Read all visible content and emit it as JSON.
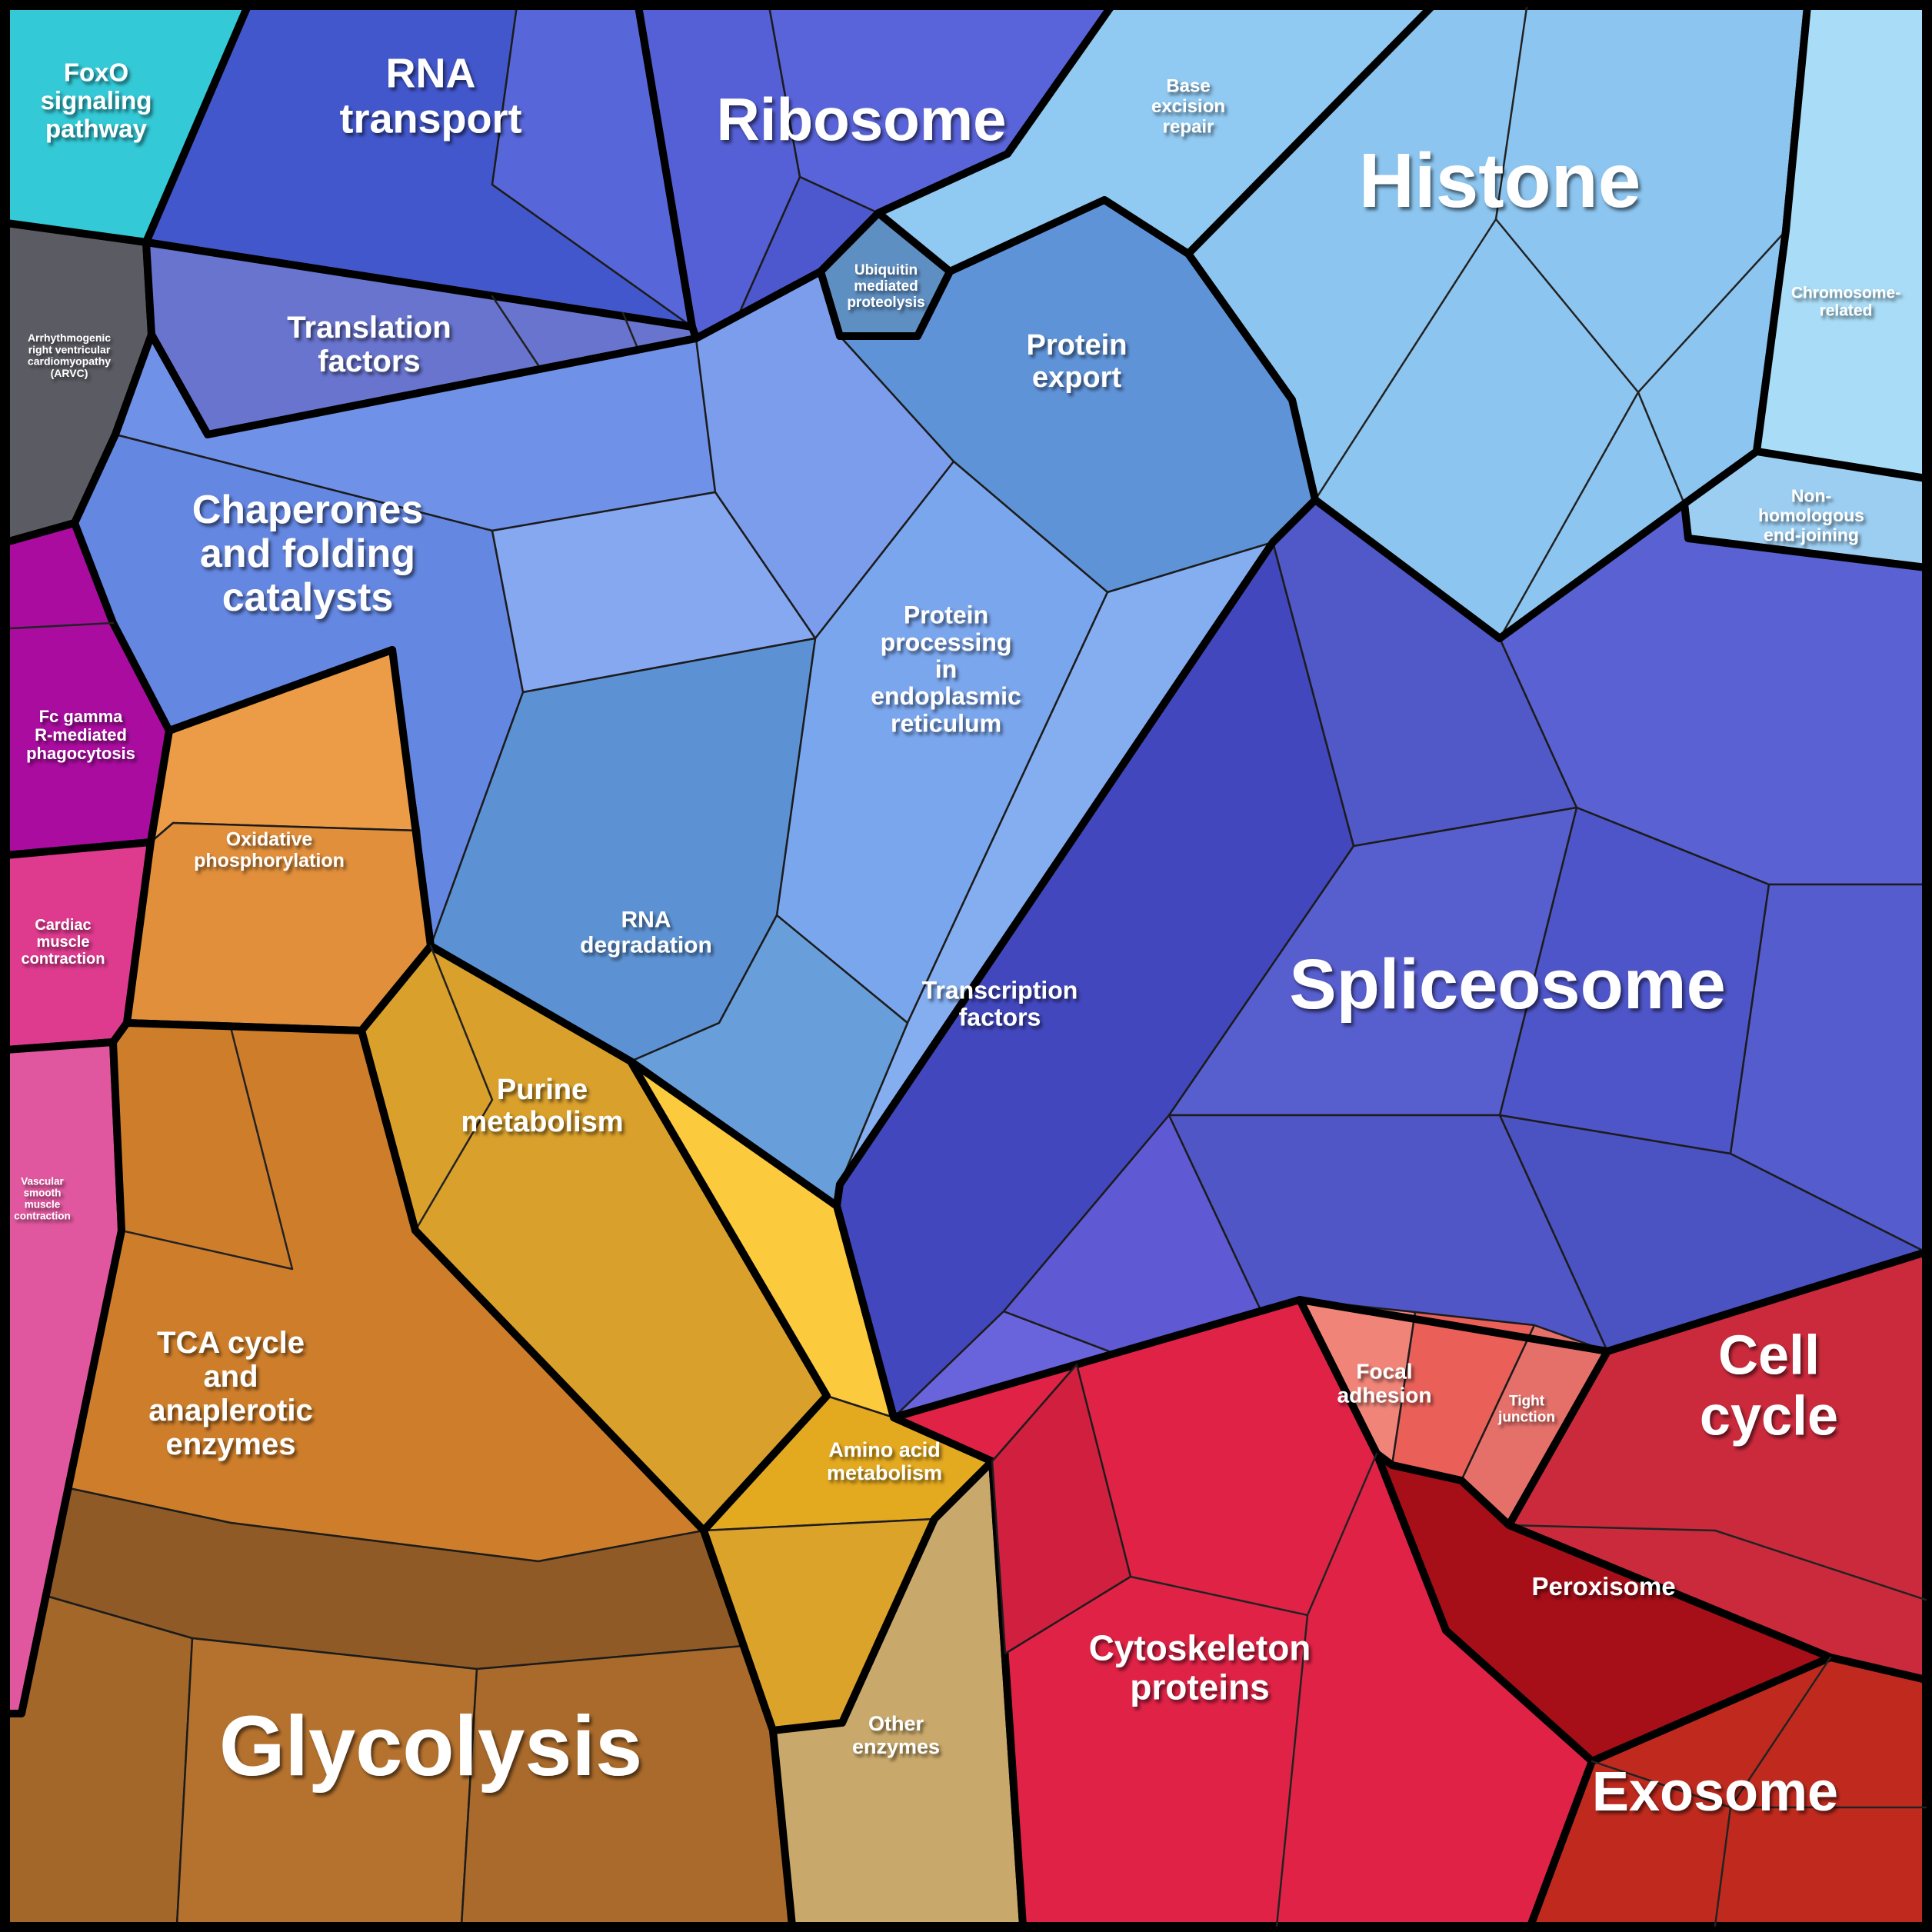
{
  "figure": {
    "kind": "proteomap-voronoi-treemap",
    "background": "#000000",
    "note": "Polygonal treemap of functional categories; cell area encodes relative share (values below are visual estimates read from cell areas)."
  },
  "chart_data": {
    "type": "treemap",
    "variant": "voronoi",
    "legend": "none",
    "regions": {
      "foxo": {
        "label": "FoxO signaling pathway",
        "lines": [
          "FoxO",
          "signaling",
          "pathway"
        ],
        "color": "#33C9D6",
        "approx_area_pct": 1.4
      },
      "arvc": {
        "label": "Arrhythmogenic right ventricular cardiomyopathy (ARVC)",
        "lines": [
          "Arrhythmogenic",
          "right ventricular",
          "cardiomyopathy",
          "(ARVC)"
        ],
        "color": "#5B5B63",
        "approx_area_pct": 1.1
      },
      "fc_gamma": {
        "label": "Fc gamma R-mediated phagocytosis",
        "lines": [
          "Fc gamma",
          "R-mediated",
          "phagocytosis"
        ],
        "color": "#AA0CA0",
        "approx_area_pct": 1.4
      },
      "cardiac": {
        "label": "Cardiac muscle contraction",
        "lines": [
          "Cardiac",
          "muscle",
          "contraction"
        ],
        "color": "#DE3A8E",
        "approx_area_pct": 0.8
      },
      "vascular": {
        "label": "Vascular smooth muscle contraction",
        "lines": [
          "Vascular",
          "smooth",
          "muscle",
          "contraction"
        ],
        "color": "#E1579F",
        "approx_area_pct": 0.9
      },
      "rna_transport": {
        "label": "RNA transport",
        "lines": [
          "RNA",
          "transport"
        ],
        "color": "#4257CC",
        "shades": [
          "#4257CC",
          "#5767DA"
        ],
        "approx_area_pct": 3.8
      },
      "ribosome": {
        "label": "Ribosome",
        "lines": [
          "Ribosome"
        ],
        "color": "#5A64DA",
        "shades": [
          "#5560D6",
          "#5A64DA",
          "#4D57CE"
        ],
        "approx_area_pct": 5.2
      },
      "translation_factors": {
        "label": "Translation factors",
        "lines": [
          "Translation",
          "factors"
        ],
        "color": "#6874CE",
        "approx_area_pct": 2.0
      },
      "base_excision_repair": {
        "label": "Base excision repair",
        "lines": [
          "Base",
          "excision",
          "repair"
        ],
        "color": "#90C9F1",
        "approx_area_pct": 1.4
      },
      "histone": {
        "label": "Histone",
        "lines": [
          "Histone"
        ],
        "color": "#8CC5EF",
        "approx_area_pct": 8.5
      },
      "chromosome_related": {
        "label": "Chromosome-related",
        "lines": [
          "Chromosome-",
          "related"
        ],
        "color": "#A9DCF6",
        "approx_area_pct": 1.6
      },
      "nhej": {
        "label": "Non-homologous end-joining",
        "lines": [
          "Non-",
          "homologous",
          "end-joining"
        ],
        "color": "#9CCEF2",
        "approx_area_pct": 0.6
      },
      "ubiquitin": {
        "label": "Ubiquitin mediated proteolysis",
        "lines": [
          "Ubiquitin",
          "mediated",
          "proteolysis"
        ],
        "color": "#5E8FC2",
        "approx_area_pct": 0.4
      },
      "chaperones": {
        "label": "Chaperones and folding catalysts",
        "lines": [
          "Chaperones",
          "and folding",
          "catalysts"
        ],
        "color": "#6F92E8",
        "shades": [
          "#6F92E8",
          "#6487E2",
          "#7B9DEC",
          "#86A8F0"
        ],
        "approx_area_pct": 6.5
      },
      "protein_export": {
        "label": "Protein export",
        "lines": [
          "Protein",
          "export"
        ],
        "color": "#5F93D8",
        "approx_area_pct": 2.0
      },
      "protein_processing_er": {
        "label": "Protein processing in endoplasmic reticulum",
        "lines": [
          "Protein",
          "processing",
          "in",
          "endoplasmic",
          "reticulum"
        ],
        "color": "#7AA6EE",
        "shades": [
          "#7AA6EE",
          "#84AEF0"
        ],
        "approx_area_pct": 4.5
      },
      "rna_degradation": {
        "label": "RNA degradation",
        "lines": [
          "RNA",
          "degradation"
        ],
        "color": "#5C92D4",
        "shades": [
          "#5C92D4",
          "#689EDA"
        ],
        "approx_area_pct": 2.2
      },
      "transcription_factors": {
        "label": "Transcription factors",
        "lines": [
          "Transcription",
          "factors"
        ],
        "color": "#4247BE",
        "shades": [
          "#6A64DC",
          "#5F59D4"
        ],
        "approx_area_pct": 3.2
      },
      "spliceosome": {
        "label": "Spliceosome",
        "lines": [
          "Spliceosome"
        ],
        "color": "#5057C8",
        "shades": [
          "#5158C8",
          "#5A61D2",
          "#4E55C8",
          "#555CCE",
          "#4B52C2",
          "#575ECE",
          "#5056C6"
        ],
        "approx_area_pct": 11.5
      },
      "oxidative_phosphorylation": {
        "label": "Oxidative phosphorylation",
        "lines": [
          "Oxidative",
          "phosphorylation"
        ],
        "color": "#E18F3B",
        "shades": [
          "#EC9C46",
          "#E18F3B"
        ],
        "approx_area_pct": 1.8
      },
      "purine": {
        "label": "Purine metabolism",
        "lines": [
          "Purine",
          "metabolism"
        ],
        "color": "#D9A02B",
        "approx_area_pct": 4.2
      },
      "tca": {
        "label": "TCA cycle and anaplerotic enzymes",
        "lines": [
          "TCA cycle",
          "and",
          "anaplerotic",
          "enzymes"
        ],
        "color": "#CE7E2A",
        "approx_area_pct": 3.0
      },
      "glycolysis": {
        "label": "Glycolysis",
        "lines": [
          "Glycolysis"
        ],
        "color": "#A96A2B",
        "shades": [
          "#8F5A26",
          "#A4672A",
          "#B5722E",
          "#A96A2B"
        ],
        "approx_area_pct": 8.0
      },
      "amino_acid": {
        "label": "Amino acid metabolism",
        "lines": [
          "Amino acid",
          "metabolism"
        ],
        "color": "#E3A91F",
        "shades": [
          "#FBCB3D",
          "#E3A91F",
          "#DCA32A"
        ],
        "approx_area_pct": 2.2
      },
      "other_enzymes": {
        "label": "Other enzymes",
        "lines": [
          "Other",
          "enzymes"
        ],
        "color": "#C9A96B",
        "approx_area_pct": 1.8
      },
      "focal_adhesion": {
        "label": "Focal adhesion",
        "lines": [
          "Focal",
          "adhesion"
        ],
        "color": "#EA6058",
        "shades": [
          "#F08478",
          "#EA6058"
        ],
        "approx_area_pct": 1.2
      },
      "tight_junction": {
        "label": "Tight junction",
        "lines": [
          "Tight",
          "junction"
        ],
        "color": "#E5706A",
        "approx_area_pct": 0.5
      },
      "cell_cycle": {
        "label": "Cell cycle",
        "lines": [
          "Cell",
          "cycle"
        ],
        "color": "#CB2A3C",
        "approx_area_pct": 4.0
      },
      "peroxisome": {
        "label": "Peroxisome",
        "lines": [
          "Peroxisome"
        ],
        "color": "#A60E18",
        "approx_area_pct": 2.3
      },
      "cytoskeleton": {
        "label": "Cytoskeleton proteins",
        "lines": [
          "Cytoskeleton",
          "proteins"
        ],
        "color": "#E02246",
        "shades": [
          "#D01F3F"
        ],
        "approx_area_pct": 4.5
      },
      "exosome": {
        "label": "Exosome",
        "lines": [
          "Exosome"
        ],
        "color": "#C02A1E",
        "approx_area_pct": 5.5
      }
    }
  }
}
